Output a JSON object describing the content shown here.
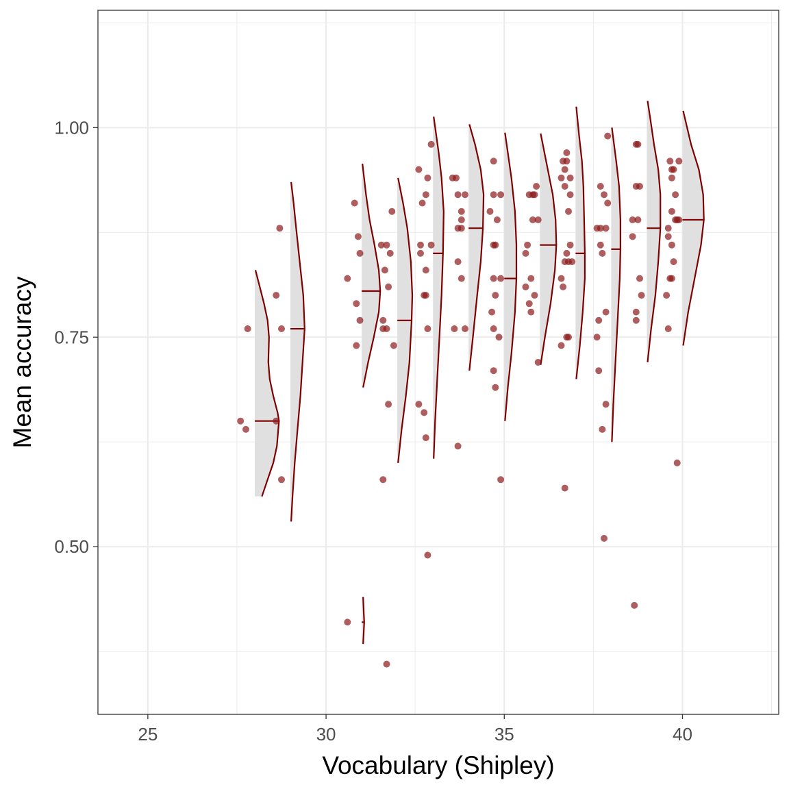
{
  "chart_data": {
    "type": "scatter",
    "subtype": "raincloud (jittered points + half-violin densities with median ticks)",
    "title": "",
    "xlabel": "Vocabulary (Shipley)",
    "ylabel": "Mean accuracy",
    "xlim": [
      23.6,
      42.7
    ],
    "ylim": [
      0.3,
      1.14
    ],
    "x_ticks": [
      25,
      30,
      35,
      40
    ],
    "x_tick_labels": [
      "25",
      "30",
      "35",
      "40"
    ],
    "y_ticks": [
      0.5,
      0.75,
      1.0
    ],
    "y_tick_labels": [
      "0.50",
      "0.75",
      "1.00"
    ],
    "grid": true,
    "legend": "none",
    "colors": {
      "point": "#8b1a1a",
      "violin_line": "#7f0000",
      "violin_fill": "#e0e0e0",
      "grid": "#ebebeb",
      "panel_border": "#333333"
    },
    "points": [
      {
        "x": 27.6,
        "y": 0.65
      },
      {
        "x": 27.75,
        "y": 0.64
      },
      {
        "x": 27.8,
        "y": 0.76
      },
      {
        "x": 28.6,
        "y": 0.8
      },
      {
        "x": 28.7,
        "y": 0.88
      },
      {
        "x": 28.6,
        "y": 0.65
      },
      {
        "x": 28.75,
        "y": 0.76
      },
      {
        "x": 28.75,
        "y": 0.58
      },
      {
        "x": 30.6,
        "y": 0.82
      },
      {
        "x": 30.6,
        "y": 0.41
      },
      {
        "x": 30.8,
        "y": 0.91
      },
      {
        "x": 30.85,
        "y": 0.79
      },
      {
        "x": 30.85,
        "y": 0.74
      },
      {
        "x": 30.9,
        "y": 0.87
      },
      {
        "x": 30.95,
        "y": 0.85
      },
      {
        "x": 30.95,
        "y": 0.77
      },
      {
        "x": 31.55,
        "y": 0.86
      },
      {
        "x": 31.6,
        "y": 0.77
      },
      {
        "x": 31.6,
        "y": 0.76
      },
      {
        "x": 31.6,
        "y": 0.58
      },
      {
        "x": 31.65,
        "y": 0.83
      },
      {
        "x": 31.7,
        "y": 0.86
      },
      {
        "x": 31.7,
        "y": 0.76
      },
      {
        "x": 31.7,
        "y": 0.36
      },
      {
        "x": 31.75,
        "y": 0.81
      },
      {
        "x": 31.75,
        "y": 0.67
      },
      {
        "x": 31.8,
        "y": 0.85
      },
      {
        "x": 31.85,
        "y": 0.9
      },
      {
        "x": 31.9,
        "y": 0.74
      },
      {
        "x": 32.6,
        "y": 0.95
      },
      {
        "x": 32.6,
        "y": 0.67
      },
      {
        "x": 32.65,
        "y": 0.86
      },
      {
        "x": 32.65,
        "y": 0.85
      },
      {
        "x": 32.7,
        "y": 0.91
      },
      {
        "x": 32.75,
        "y": 0.8
      },
      {
        "x": 32.75,
        "y": 0.66
      },
      {
        "x": 32.8,
        "y": 0.92
      },
      {
        "x": 32.8,
        "y": 0.83
      },
      {
        "x": 32.8,
        "y": 0.8
      },
      {
        "x": 32.8,
        "y": 0.63
      },
      {
        "x": 32.85,
        "y": 0.94
      },
      {
        "x": 32.85,
        "y": 0.76
      },
      {
        "x": 32.85,
        "y": 0.49
      },
      {
        "x": 32.95,
        "y": 0.98
      },
      {
        "x": 32.95,
        "y": 0.86
      },
      {
        "x": 33.55,
        "y": 0.94
      },
      {
        "x": 33.65,
        "y": 0.94
      },
      {
        "x": 33.6,
        "y": 0.76
      },
      {
        "x": 33.7,
        "y": 0.92
      },
      {
        "x": 33.7,
        "y": 0.88
      },
      {
        "x": 33.7,
        "y": 0.84
      },
      {
        "x": 33.7,
        "y": 0.62
      },
      {
        "x": 33.8,
        "y": 0.9
      },
      {
        "x": 33.8,
        "y": 0.89
      },
      {
        "x": 33.8,
        "y": 0.82
      },
      {
        "x": 33.8,
        "y": 0.88
      },
      {
        "x": 33.9,
        "y": 0.92
      },
      {
        "x": 33.9,
        "y": 0.76
      },
      {
        "x": 34.6,
        "y": 0.9
      },
      {
        "x": 34.65,
        "y": 0.78
      },
      {
        "x": 34.7,
        "y": 0.96
      },
      {
        "x": 34.7,
        "y": 0.92
      },
      {
        "x": 34.7,
        "y": 0.86
      },
      {
        "x": 34.7,
        "y": 0.82
      },
      {
        "x": 34.7,
        "y": 0.76
      },
      {
        "x": 34.7,
        "y": 0.71
      },
      {
        "x": 34.75,
        "y": 0.86
      },
      {
        "x": 34.75,
        "y": 0.8
      },
      {
        "x": 34.75,
        "y": 0.69
      },
      {
        "x": 34.8,
        "y": 0.89
      },
      {
        "x": 34.85,
        "y": 0.75
      },
      {
        "x": 34.9,
        "y": 0.92
      },
      {
        "x": 34.9,
        "y": 0.82
      },
      {
        "x": 34.9,
        "y": 0.58
      },
      {
        "x": 35.6,
        "y": 0.85
      },
      {
        "x": 35.6,
        "y": 0.81
      },
      {
        "x": 35.65,
        "y": 0.86
      },
      {
        "x": 35.7,
        "y": 0.92
      },
      {
        "x": 35.7,
        "y": 0.79
      },
      {
        "x": 35.75,
        "y": 0.82
      },
      {
        "x": 35.75,
        "y": 0.78
      },
      {
        "x": 35.8,
        "y": 0.92
      },
      {
        "x": 35.8,
        "y": 0.89
      },
      {
        "x": 35.85,
        "y": 0.92
      },
      {
        "x": 35.85,
        "y": 0.8
      },
      {
        "x": 35.9,
        "y": 0.93
      },
      {
        "x": 35.95,
        "y": 0.72
      },
      {
        "x": 35.95,
        "y": 0.89
      },
      {
        "x": 36.6,
        "y": 0.94
      },
      {
        "x": 36.6,
        "y": 0.82
      },
      {
        "x": 36.6,
        "y": 0.74
      },
      {
        "x": 36.65,
        "y": 0.96
      },
      {
        "x": 36.65,
        "y": 0.81
      },
      {
        "x": 36.7,
        "y": 0.95
      },
      {
        "x": 36.7,
        "y": 0.93
      },
      {
        "x": 36.7,
        "y": 0.84
      },
      {
        "x": 36.7,
        "y": 0.57
      },
      {
        "x": 36.75,
        "y": 0.97
      },
      {
        "x": 36.75,
        "y": 0.96
      },
      {
        "x": 36.75,
        "y": 0.85
      },
      {
        "x": 36.75,
        "y": 0.75
      },
      {
        "x": 36.8,
        "y": 0.9
      },
      {
        "x": 36.8,
        "y": 0.84
      },
      {
        "x": 36.8,
        "y": 0.75
      },
      {
        "x": 36.85,
        "y": 0.94
      },
      {
        "x": 36.85,
        "y": 0.92
      },
      {
        "x": 36.85,
        "y": 0.86
      },
      {
        "x": 36.9,
        "y": 0.84
      },
      {
        "x": 37.6,
        "y": 0.88
      },
      {
        "x": 37.6,
        "y": 0.75
      },
      {
        "x": 37.65,
        "y": 0.71
      },
      {
        "x": 37.65,
        "y": 0.77
      },
      {
        "x": 37.7,
        "y": 0.93
      },
      {
        "x": 37.7,
        "y": 0.86
      },
      {
        "x": 37.7,
        "y": 0.88
      },
      {
        "x": 37.75,
        "y": 0.85
      },
      {
        "x": 37.75,
        "y": 0.64
      },
      {
        "x": 37.8,
        "y": 0.92
      },
      {
        "x": 37.8,
        "y": 0.51
      },
      {
        "x": 37.85,
        "y": 0.88
      },
      {
        "x": 37.85,
        "y": 0.78
      },
      {
        "x": 37.85,
        "y": 0.67
      },
      {
        "x": 37.9,
        "y": 0.99
      },
      {
        "x": 37.9,
        "y": 0.91
      },
      {
        "x": 38.6,
        "y": 0.89
      },
      {
        "x": 38.6,
        "y": 0.87
      },
      {
        "x": 38.65,
        "y": 0.43
      },
      {
        "x": 38.7,
        "y": 0.98
      },
      {
        "x": 38.7,
        "y": 0.93
      },
      {
        "x": 38.7,
        "y": 0.78
      },
      {
        "x": 38.7,
        "y": 0.77
      },
      {
        "x": 38.75,
        "y": 0.98
      },
      {
        "x": 38.75,
        "y": 0.89
      },
      {
        "x": 38.8,
        "y": 0.93
      },
      {
        "x": 38.8,
        "y": 0.82
      },
      {
        "x": 38.85,
        "y": 0.8
      },
      {
        "x": 39.55,
        "y": 0.8
      },
      {
        "x": 39.6,
        "y": 0.88
      },
      {
        "x": 39.6,
        "y": 0.87
      },
      {
        "x": 39.6,
        "y": 0.76
      },
      {
        "x": 39.65,
        "y": 0.82
      },
      {
        "x": 39.65,
        "y": 0.96
      },
      {
        "x": 39.7,
        "y": 0.94
      },
      {
        "x": 39.7,
        "y": 0.9
      },
      {
        "x": 39.7,
        "y": 0.86
      },
      {
        "x": 39.7,
        "y": 0.82
      },
      {
        "x": 39.7,
        "y": 0.95
      },
      {
        "x": 39.75,
        "y": 0.95
      },
      {
        "x": 39.75,
        "y": 0.84
      },
      {
        "x": 39.8,
        "y": 0.92
      },
      {
        "x": 39.8,
        "y": 0.89
      },
      {
        "x": 39.85,
        "y": 0.89
      },
      {
        "x": 39.85,
        "y": 0.6
      },
      {
        "x": 39.9,
        "y": 0.89
      },
      {
        "x": 39.9,
        "y": 0.96
      }
    ],
    "violins": [
      {
        "x": 28,
        "ymin": 0.56,
        "ymax": 0.83,
        "median": 0.65,
        "profile": [
          [
            0.56,
            0.2
          ],
          [
            0.58,
            0.36
          ],
          [
            0.6,
            0.52
          ],
          [
            0.62,
            0.62
          ],
          [
            0.64,
            0.66
          ],
          [
            0.65,
            0.68
          ],
          [
            0.66,
            0.64
          ],
          [
            0.68,
            0.52
          ],
          [
            0.7,
            0.42
          ],
          [
            0.72,
            0.38
          ],
          [
            0.75,
            0.4
          ],
          [
            0.77,
            0.36
          ],
          [
            0.79,
            0.26
          ],
          [
            0.81,
            0.14
          ],
          [
            0.83,
            0.02
          ]
        ]
      },
      {
        "x": 29,
        "ymin": 0.53,
        "ymax": 0.935,
        "median": 0.76,
        "profile": [
          [
            0.53,
            0.02
          ],
          [
            0.56,
            0.06
          ],
          [
            0.6,
            0.12
          ],
          [
            0.64,
            0.2
          ],
          [
            0.68,
            0.28
          ],
          [
            0.72,
            0.34
          ],
          [
            0.76,
            0.4
          ],
          [
            0.8,
            0.36
          ],
          [
            0.84,
            0.26
          ],
          [
            0.88,
            0.16
          ],
          [
            0.91,
            0.09
          ],
          [
            0.935,
            0.02
          ]
        ]
      },
      {
        "x": 31,
        "ymin": 0.384,
        "ymax": 0.44,
        "median": 0.41,
        "profile": [
          [
            0.384,
            0.04
          ],
          [
            0.4,
            0.06
          ],
          [
            0.41,
            0.07
          ],
          [
            0.42,
            0.06
          ],
          [
            0.44,
            0.04
          ]
        ]
      },
      {
        "x": 31,
        "ymin": 0.69,
        "ymax": 0.957,
        "median": 0.805,
        "profile": [
          [
            0.69,
            0.04
          ],
          [
            0.72,
            0.18
          ],
          [
            0.75,
            0.34
          ],
          [
            0.78,
            0.48
          ],
          [
            0.805,
            0.52
          ],
          [
            0.83,
            0.48
          ],
          [
            0.86,
            0.36
          ],
          [
            0.89,
            0.22
          ],
          [
            0.92,
            0.12
          ],
          [
            0.957,
            0.02
          ]
        ]
      },
      {
        "x": 32,
        "ymin": 0.6,
        "ymax": 0.94,
        "median": 0.77,
        "profile": [
          [
            0.6,
            0.02
          ],
          [
            0.64,
            0.12
          ],
          [
            0.68,
            0.24
          ],
          [
            0.72,
            0.34
          ],
          [
            0.77,
            0.4
          ],
          [
            0.8,
            0.42
          ],
          [
            0.84,
            0.38
          ],
          [
            0.88,
            0.28
          ],
          [
            0.91,
            0.16
          ],
          [
            0.94,
            0.02
          ]
        ]
      },
      {
        "x": 33,
        "ymin": 0.605,
        "ymax": 1.013,
        "median": 0.85,
        "profile": [
          [
            0.605,
            0.02
          ],
          [
            0.65,
            0.06
          ],
          [
            0.7,
            0.12
          ],
          [
            0.75,
            0.18
          ],
          [
            0.8,
            0.24
          ],
          [
            0.85,
            0.28
          ],
          [
            0.9,
            0.3
          ],
          [
            0.94,
            0.24
          ],
          [
            0.97,
            0.16
          ],
          [
            1.013,
            0.02
          ]
        ]
      },
      {
        "x": 34,
        "ymin": 0.71,
        "ymax": 1.004,
        "median": 0.88,
        "profile": [
          [
            0.71,
            0.02
          ],
          [
            0.75,
            0.12
          ],
          [
            0.8,
            0.24
          ],
          [
            0.84,
            0.34
          ],
          [
            0.88,
            0.4
          ],
          [
            0.92,
            0.42
          ],
          [
            0.95,
            0.34
          ],
          [
            0.98,
            0.18
          ],
          [
            1.004,
            0.02
          ]
        ]
      },
      {
        "x": 35,
        "ymin": 0.65,
        "ymax": 0.994,
        "median": 0.82,
        "profile": [
          [
            0.65,
            0.02
          ],
          [
            0.69,
            0.1
          ],
          [
            0.73,
            0.2
          ],
          [
            0.78,
            0.3
          ],
          [
            0.82,
            0.34
          ],
          [
            0.86,
            0.34
          ],
          [
            0.9,
            0.3
          ],
          [
            0.94,
            0.2
          ],
          [
            0.97,
            0.1
          ],
          [
            0.994,
            0.02
          ]
        ]
      },
      {
        "x": 36,
        "ymin": 0.717,
        "ymax": 0.993,
        "median": 0.86,
        "profile": [
          [
            0.717,
            0.02
          ],
          [
            0.75,
            0.14
          ],
          [
            0.79,
            0.3
          ],
          [
            0.83,
            0.42
          ],
          [
            0.86,
            0.46
          ],
          [
            0.89,
            0.44
          ],
          [
            0.92,
            0.36
          ],
          [
            0.95,
            0.22
          ],
          [
            0.993,
            0.02
          ]
        ]
      },
      {
        "x": 37,
        "ymin": 0.7,
        "ymax": 1.025,
        "median": 0.85,
        "profile": [
          [
            0.7,
            0.02
          ],
          [
            0.74,
            0.12
          ],
          [
            0.78,
            0.2
          ],
          [
            0.82,
            0.26
          ],
          [
            0.85,
            0.26
          ],
          [
            0.89,
            0.24
          ],
          [
            0.93,
            0.22
          ],
          [
            0.96,
            0.18
          ],
          [
            0.99,
            0.1
          ],
          [
            1.025,
            0.02
          ]
        ]
      },
      {
        "x": 38,
        "ymin": 0.625,
        "ymax": 1.0,
        "median": 0.855,
        "profile": [
          [
            0.625,
            0.02
          ],
          [
            0.67,
            0.06
          ],
          [
            0.72,
            0.12
          ],
          [
            0.77,
            0.18
          ],
          [
            0.82,
            0.24
          ],
          [
            0.855,
            0.26
          ],
          [
            0.89,
            0.26
          ],
          [
            0.93,
            0.22
          ],
          [
            0.96,
            0.14
          ],
          [
            1.0,
            0.02
          ]
        ]
      },
      {
        "x": 39,
        "ymin": 0.72,
        "ymax": 1.032,
        "median": 0.88,
        "profile": [
          [
            0.72,
            0.02
          ],
          [
            0.76,
            0.12
          ],
          [
            0.8,
            0.24
          ],
          [
            0.84,
            0.32
          ],
          [
            0.88,
            0.38
          ],
          [
            0.92,
            0.38
          ],
          [
            0.95,
            0.32
          ],
          [
            0.98,
            0.2
          ],
          [
            1.01,
            0.1
          ],
          [
            1.032,
            0.02
          ]
        ]
      },
      {
        "x": 40,
        "ymin": 0.74,
        "ymax": 1.02,
        "median": 0.89,
        "profile": [
          [
            0.74,
            0.02
          ],
          [
            0.78,
            0.16
          ],
          [
            0.82,
            0.34
          ],
          [
            0.86,
            0.52
          ],
          [
            0.89,
            0.6
          ],
          [
            0.92,
            0.58
          ],
          [
            0.95,
            0.46
          ],
          [
            0.98,
            0.24
          ],
          [
            1.02,
            0.02
          ]
        ]
      }
    ]
  }
}
